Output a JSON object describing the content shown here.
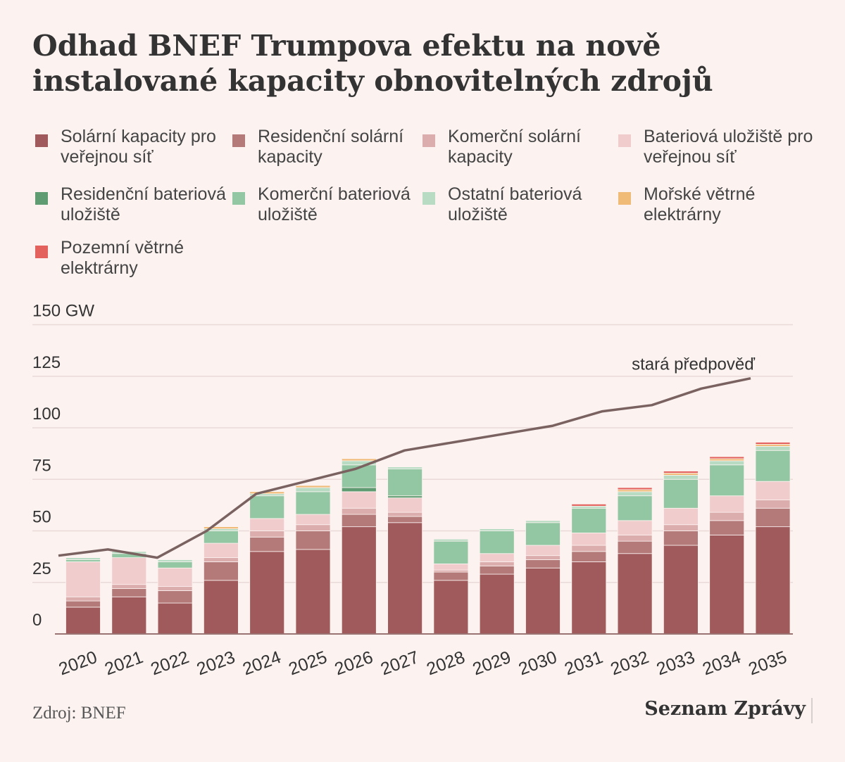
{
  "title": "Odhad BNEF Trumpova efektu na nově instalované kapacity obnovitelných zdrojů",
  "source": "Zdroj: BNEF",
  "brand": "Seznam Zprávy",
  "chart_data": {
    "type": "bar",
    "stacked": true,
    "categories": [
      "2020",
      "2021",
      "2022",
      "2023",
      "2024",
      "2025",
      "2026",
      "2027",
      "2028",
      "2029",
      "2030",
      "2031",
      "2032",
      "2033",
      "2034",
      "2035"
    ],
    "y_tick_labels": [
      "0",
      "25",
      "50",
      "75",
      "100",
      "125",
      "150 GW"
    ],
    "ylim": [
      0,
      150
    ],
    "grid": true,
    "legend_position": "top",
    "series": [
      {
        "name": "Solární kapacity pro veřejnou síť",
        "color": "#a05a5c",
        "values": [
          13,
          18,
          15,
          26,
          40,
          41,
          52,
          54,
          26,
          29,
          32,
          35,
          39,
          43,
          48,
          52
        ]
      },
      {
        "name": "Residenční solární kapacity",
        "color": "#b37a79",
        "values": [
          3,
          4,
          6,
          9,
          7,
          9,
          6,
          3,
          4,
          4,
          4,
          5,
          6,
          7,
          7,
          9
        ]
      },
      {
        "name": "Komerční solární kapacity",
        "color": "#dcadad",
        "values": [
          2,
          2,
          2,
          2,
          3,
          3,
          3,
          2,
          1,
          2,
          2,
          3,
          3,
          3,
          4,
          4
        ]
      },
      {
        "name": "Bateriová uložiště pro veřejnou síť",
        "color": "#f1cccc",
        "values": [
          17,
          13,
          9,
          7,
          6,
          5,
          8,
          7,
          3,
          4,
          5,
          6,
          7,
          8,
          8,
          9
        ]
      },
      {
        "name": "Residenční bateriová uložiště",
        "color": "#5f9c71",
        "values": [
          0,
          0,
          0,
          0,
          0,
          0,
          2,
          1,
          0,
          0,
          0,
          0,
          0,
          0,
          0,
          0
        ]
      },
      {
        "name": "Komerční bateriová uložiště",
        "color": "#93c6a2",
        "values": [
          1,
          2,
          3,
          6,
          11,
          11,
          11,
          13,
          11,
          11,
          11,
          12,
          12,
          14,
          15,
          15
        ]
      },
      {
        "name": "Ostatní bateriová uložiště",
        "color": "#b8dcc3",
        "values": [
          1,
          1,
          1,
          1,
          1,
          2,
          2,
          1,
          1,
          1,
          1,
          1,
          2,
          2,
          2,
          2
        ]
      },
      {
        "name": "Mořské větrné elektrárny",
        "color": "#efbb77",
        "values": [
          0,
          0,
          0,
          1,
          1,
          1,
          1,
          0,
          0,
          0,
          0,
          0,
          1,
          1,
          1,
          1
        ]
      },
      {
        "name": "Pozemní větrné elektrárny",
        "color": "#e3625e",
        "values": [
          0,
          0,
          0,
          0,
          0,
          0,
          0,
          0,
          0,
          0,
          0,
          1,
          1,
          1,
          1,
          1
        ]
      }
    ],
    "line": {
      "name": "stará předpověď",
      "color": "#7a6261",
      "values": [
        38,
        41,
        37,
        50,
        68,
        74,
        80,
        89,
        93,
        97,
        101,
        108,
        111,
        119,
        124
      ]
    }
  }
}
